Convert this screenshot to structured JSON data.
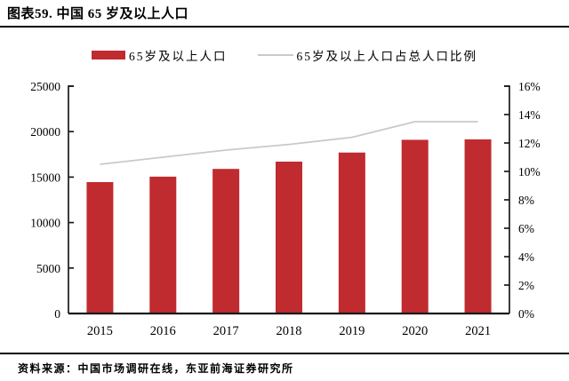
{
  "figure": {
    "title": "图表59. 中国 65 岁及以上人口",
    "source_note": "资料来源：中国市场调研在线，东亚前海证券研究所"
  },
  "legend": [
    {
      "type": "bar",
      "label": "65岁及以上人口",
      "color": "#C02B30"
    },
    {
      "type": "line",
      "label": "65岁及以上人口占总人口比例",
      "color": "#C9C9C9"
    }
  ],
  "colors": {
    "bar": "#C02B30",
    "line": "#C9C9C9",
    "axis": "#1a1a1a",
    "text": "#000000"
  },
  "chart_data": {
    "type": "bar",
    "title": "中国 65 岁及以上人口",
    "categories": [
      "2015",
      "2016",
      "2017",
      "2018",
      "2019",
      "2020",
      "2021"
    ],
    "series": [
      {
        "name": "65岁及以上人口",
        "type": "bar",
        "axis": "left",
        "color": "#C02B30",
        "values": [
          14450,
          15050,
          15900,
          16700,
          17700,
          19100,
          19150
        ]
      },
      {
        "name": "65岁及以上人口占总人口比例",
        "type": "line",
        "axis": "right",
        "color": "#C9C9C9",
        "values": [
          10.5,
          11.0,
          11.5,
          11.9,
          12.4,
          13.5,
          13.5
        ]
      }
    ],
    "left_axis": {
      "min": 0,
      "max": 25000,
      "step": 5000,
      "tick_labels": [
        "0",
        "5000",
        "10000",
        "15000",
        "20000",
        "25000"
      ]
    },
    "right_axis": {
      "min": 0,
      "max": 16,
      "step": 2,
      "tick_labels": [
        "0%",
        "2%",
        "4%",
        "6%",
        "8%",
        "10%",
        "12%",
        "14%",
        "16%"
      ]
    },
    "grid": false,
    "legend_position": "top"
  }
}
